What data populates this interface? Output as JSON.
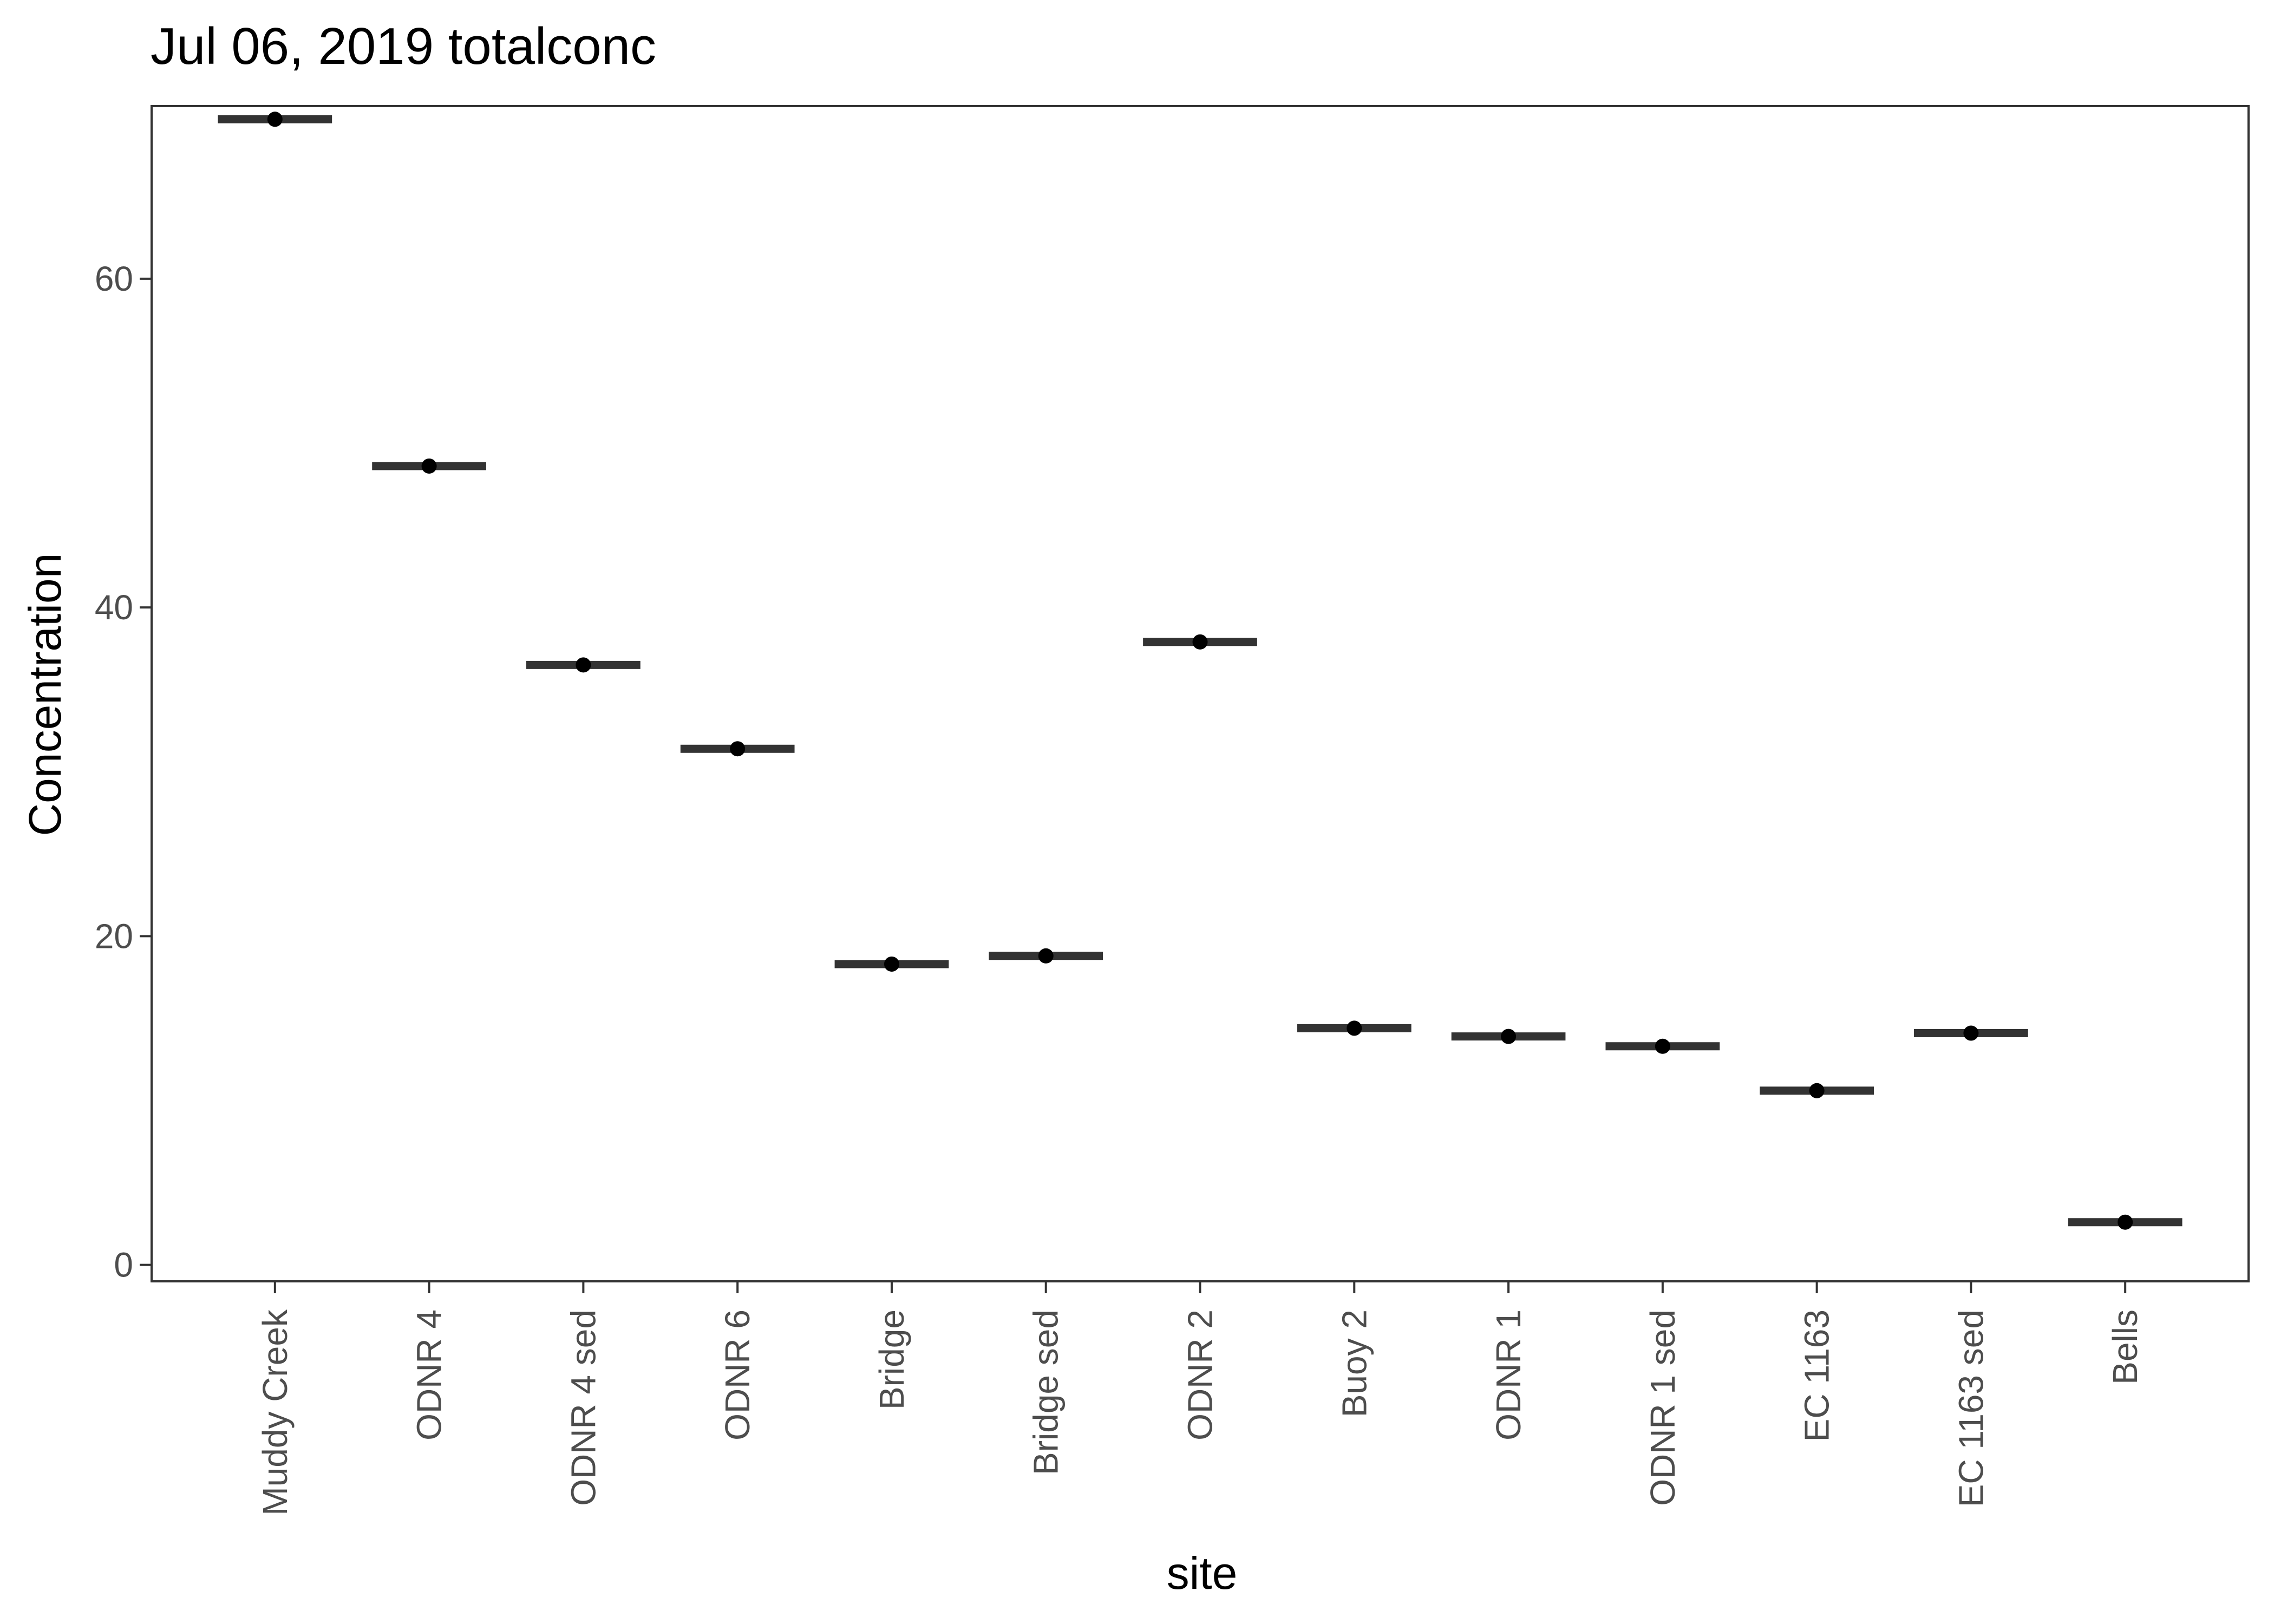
{
  "chart_data": {
    "type": "scatter",
    "title": "Jul 06, 2019 totalconc",
    "xlabel": "site",
    "ylabel": "Concentration",
    "ylim": [
      -1,
      70.5
    ],
    "yticks": [
      0,
      20,
      40,
      60
    ],
    "grid": false,
    "legend": "none",
    "categories": [
      "Muddy Creek",
      "ODNR 4",
      "ODNR 4 sed",
      "ODNR 6",
      "Bridge",
      "Bridge sed",
      "ODNR 2",
      "Buoy 2",
      "ODNR 1",
      "ODNR 1 sed",
      "EC 1163",
      "EC 1163 sed",
      "Bells"
    ],
    "values": [
      69.7,
      48.6,
      36.5,
      31.4,
      18.3,
      18.8,
      37.9,
      14.4,
      13.9,
      13.3,
      10.6,
      14.1,
      2.6
    ],
    "point_color": "#000000",
    "bar_color": "#333333"
  }
}
